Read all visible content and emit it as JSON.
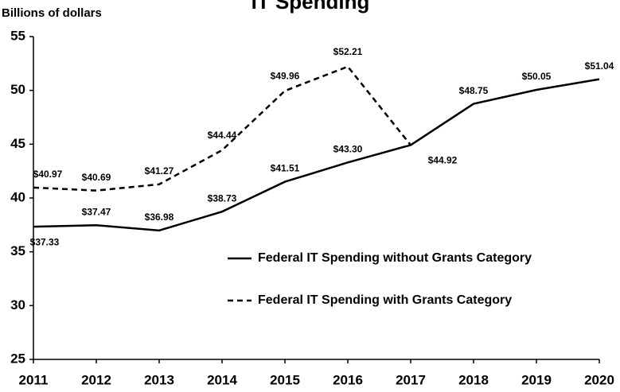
{
  "chart_data": {
    "type": "line",
    "title": "IT Spending",
    "ylabel": "Billions of dollars",
    "categories": [
      "2011",
      "2012",
      "2013",
      "2014",
      "2015",
      "2016",
      "2017",
      "2018",
      "2019",
      "2020"
    ],
    "series": [
      {
        "name": "Federal IT Spending without Grants Category",
        "color": "#000000",
        "dash": false,
        "values": [
          37.33,
          37.47,
          36.98,
          38.73,
          41.51,
          43.3,
          44.92,
          48.75,
          50.05,
          51.04
        ],
        "value_labels": [
          "$37.33",
          "$37.47",
          "$36.98",
          "$38.73",
          "$41.51",
          "$43.30",
          "$44.92",
          "$48.75",
          "$50.05",
          "$51.04"
        ]
      },
      {
        "name": "Federal IT Spending with Grants Category",
        "color": "#000000",
        "dash": true,
        "values": [
          40.97,
          40.69,
          41.27,
          44.44,
          49.96,
          52.21,
          44.92,
          null,
          null,
          null
        ],
        "value_labels": [
          "$40.97",
          "$40.69",
          "$41.27",
          "$44.44",
          "$49.96",
          "$52.21",
          null,
          null,
          null,
          null
        ]
      }
    ],
    "ylim": [
      25,
      55
    ],
    "yticks": [
      25,
      30,
      35,
      40,
      45,
      50,
      55
    ],
    "grid": false
  }
}
